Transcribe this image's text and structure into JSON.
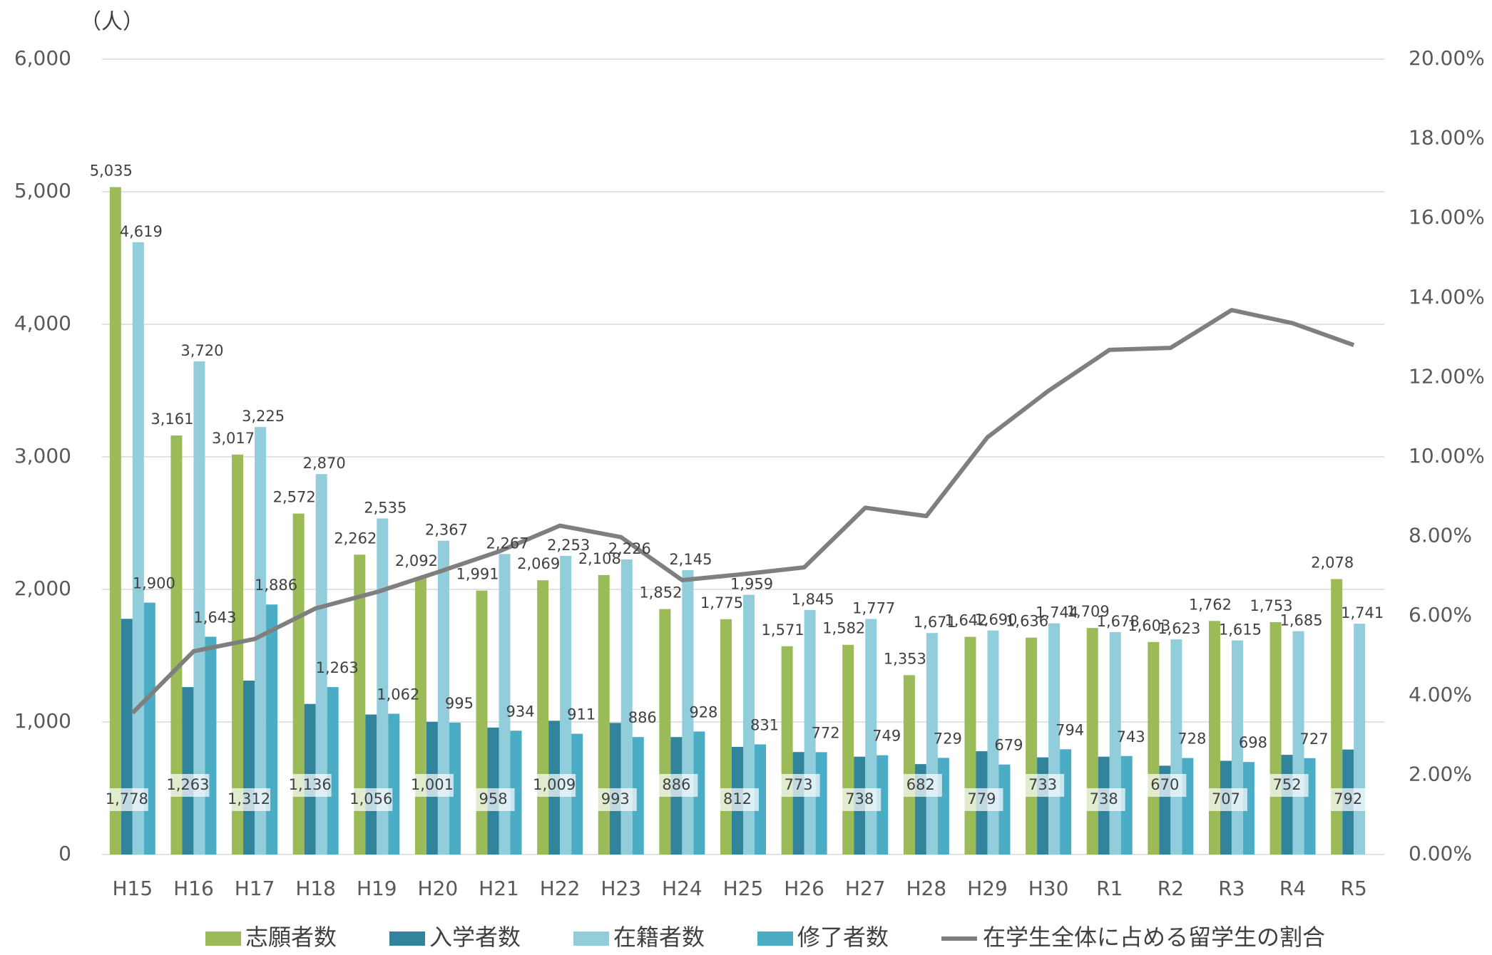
{
  "chart_data": {
    "type": "bar",
    "unit_label": "（人）",
    "categories": [
      "H15",
      "H16",
      "H17",
      "H18",
      "H19",
      "H20",
      "H21",
      "H22",
      "H23",
      "H24",
      "H25",
      "H26",
      "H27",
      "H28",
      "H29",
      "H30",
      "R1",
      "R2",
      "R3",
      "R4",
      "R5"
    ],
    "series": [
      {
        "name": "志願者数",
        "color": "#9bbb59",
        "values": [
          5035,
          3161,
          3017,
          2572,
          2262,
          2092,
          1991,
          2069,
          2108,
          1852,
          1775,
          1571,
          1582,
          1353,
          1642,
          1636,
          1709,
          1603,
          1762,
          1753,
          2078
        ],
        "value_labels": [
          "5,035",
          "3,161",
          "3,017",
          "2,572",
          "2,262",
          "2,092",
          "1,991",
          "2,069",
          "2,108",
          "1,852",
          "1,775",
          "1,571",
          "1,582",
          "1,353",
          "1,642",
          "1,636",
          "1,709",
          "1,603",
          "1,762",
          "1,753",
          "2,078"
        ]
      },
      {
        "name": "入学者数",
        "color": "#31849b",
        "values": [
          1778,
          1263,
          1312,
          1136,
          1056,
          1001,
          958,
          1009,
          993,
          886,
          812,
          773,
          738,
          682,
          779,
          733,
          738,
          670,
          707,
          752,
          792
        ],
        "value_labels": [
          "1,778",
          "1,263",
          "1,312",
          "1,136",
          "1,056",
          "1,001",
          "958",
          "1,009",
          "993",
          "886",
          "812",
          "773",
          "738",
          "682",
          "779",
          "733",
          "738",
          "670",
          "707",
          "752",
          "792"
        ]
      },
      {
        "name": "在籍者数",
        "color": "#92cddc",
        "values": [
          4619,
          3720,
          3225,
          2870,
          2535,
          2367,
          2267,
          2253,
          2226,
          2145,
          1959,
          1845,
          1777,
          1671,
          1690,
          1744,
          1678,
          1623,
          1615,
          1685,
          1741
        ],
        "value_labels": [
          "4,619",
          "3,720",
          "3,225",
          "2,870",
          "2,535",
          "2,367",
          "2,267",
          "2,253",
          "2,226",
          "2,145",
          "1,959",
          "1,845",
          "1,777",
          "1,671",
          "1,690",
          "1,744",
          "1,678",
          "1,623",
          "1,615",
          "1,685",
          "1,741"
        ]
      },
      {
        "name": "修了者数",
        "color": "#4bacc6",
        "values": [
          1900,
          1643,
          1886,
          1263,
          1062,
          995,
          934,
          911,
          886,
          928,
          831,
          772,
          749,
          729,
          679,
          794,
          743,
          728,
          698,
          727,
          null
        ],
        "value_labels": [
          "1,900",
          "1,643",
          "1,886",
          "1,263",
          "1,062",
          "995",
          "934",
          "911",
          "886",
          "928",
          "831",
          "772",
          "749",
          "729",
          "679",
          "794",
          "743",
          "728",
          "698",
          "727",
          null
        ]
      },
      {
        "name": "在学生全体に占める留学生の割合",
        "type": "line",
        "axis": "y2",
        "color": "#7f7f7f",
        "values": [
          3.56,
          5.11,
          5.42,
          6.19,
          6.6,
          7.1,
          7.62,
          8.27,
          7.98,
          6.9,
          7.05,
          7.22,
          8.72,
          8.51,
          10.49,
          11.66,
          12.69,
          12.74,
          13.69,
          13.36,
          12.81
        ]
      }
    ],
    "ylim": [
      0,
      6000
    ],
    "yticks": [
      0,
      {
        "value": 1000,
        "label": "1,000"
      },
      {
        "value": 2000,
        "label": "2,000"
      },
      {
        "value": 3000,
        "label": "3,000"
      },
      {
        "value": 4000,
        "label": "4,000"
      },
      {
        "value": 5000,
        "label": "5,000"
      },
      {
        "value": 6000,
        "label": "6,000"
      }
    ],
    "y2lim": [
      0,
      20
    ],
    "y2ticks": [
      {
        "value": 0,
        "label": "0.00%"
      },
      {
        "value": 2,
        "label": "2.00%"
      },
      {
        "value": 4,
        "label": "4.00%"
      },
      {
        "value": 6,
        "label": "6.00%"
      },
      {
        "value": 8,
        "label": "8.00%"
      },
      {
        "value": 10,
        "label": "10.00%"
      },
      {
        "value": 12,
        "label": "12.00%"
      },
      {
        "value": 14,
        "label": "14.00%"
      },
      {
        "value": 16,
        "label": "16.00%"
      },
      {
        "value": 18,
        "label": "18.00%"
      },
      {
        "value": 20,
        "label": "20.00%"
      }
    ],
    "grid": true,
    "legend": "bottom"
  }
}
